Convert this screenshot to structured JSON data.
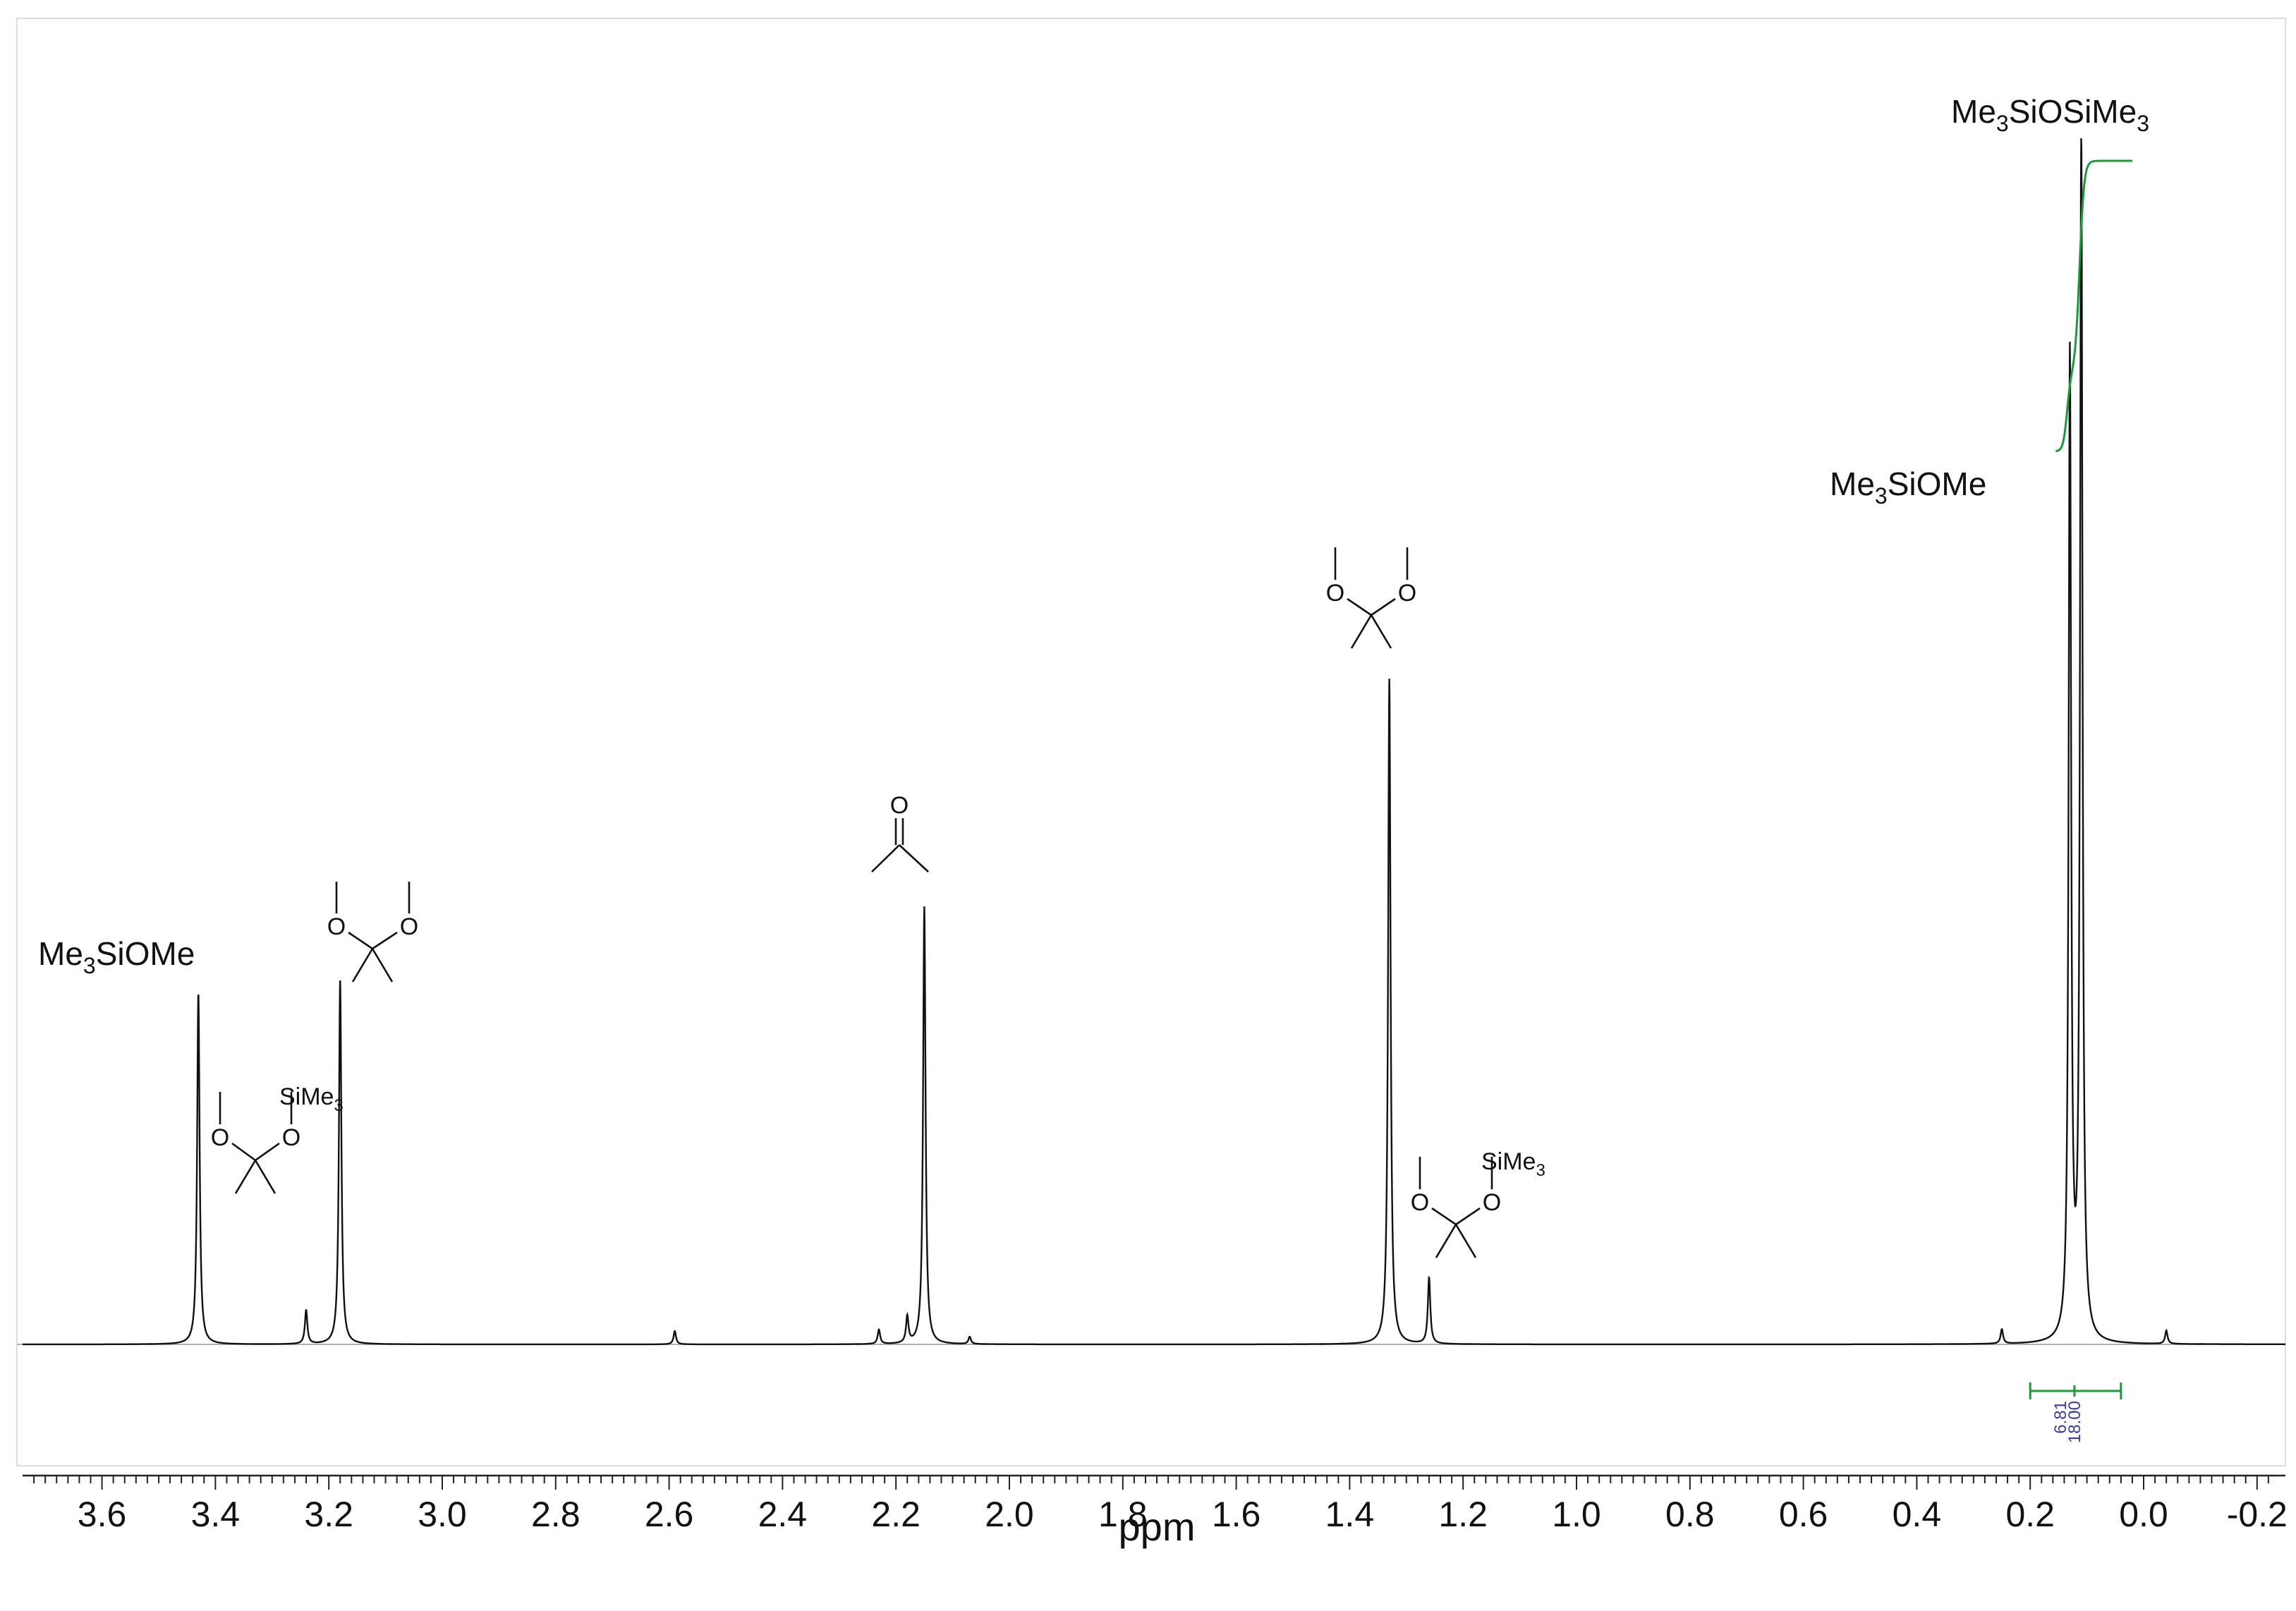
{
  "chart_data": {
    "type": "line",
    "title": "",
    "xlabel": "ppm",
    "ylabel": "",
    "xlim": [
      3.74,
      -0.25
    ],
    "x_reversed": true,
    "x_ticks": [
      "3.6",
      "3.4",
      "3.2",
      "3.0",
      "2.8",
      "2.6",
      "2.4",
      "2.2",
      "2.0",
      "1.8",
      "1.6",
      "1.4",
      "1.2",
      "1.0",
      "0.8",
      "0.6",
      "0.4",
      "0.2",
      "0.0",
      "-0.2"
    ],
    "x_tick_values": [
      3.6,
      3.4,
      3.2,
      3.0,
      2.8,
      2.6,
      2.4,
      2.2,
      2.0,
      1.8,
      1.6,
      1.4,
      1.2,
      1.0,
      0.8,
      0.6,
      0.4,
      0.2,
      0.0,
      -0.2
    ],
    "grid": false,
    "series": [
      {
        "peaks": [
          {
            "ppm": 3.43,
            "height": 0.292
          },
          {
            "ppm": 3.24,
            "height": 0.028
          },
          {
            "ppm": 3.18,
            "height": 0.302
          },
          {
            "ppm": 2.59,
            "height": 0.011
          },
          {
            "ppm": 2.23,
            "height": 0.012
          },
          {
            "ppm": 2.18,
            "height": 0.022
          },
          {
            "ppm": 2.15,
            "height": 0.363
          },
          {
            "ppm": 2.07,
            "height": 0.006
          },
          {
            "ppm": 1.33,
            "height": 0.552
          },
          {
            "ppm": 1.26,
            "height": 0.055
          },
          {
            "ppm": 0.25,
            "height": 0.012
          },
          {
            "ppm": 0.13,
            "height": 0.815
          },
          {
            "ppm": 0.11,
            "height": 1.0
          },
          {
            "ppm": -0.04,
            "height": 0.011
          }
        ]
      }
    ],
    "integrals": [
      {
        "from": 0.2,
        "to": 0.04,
        "labels": [
          "6.81",
          "18.00"
        ]
      }
    ],
    "annotations": [
      {
        "id": "ann-me3siome-left",
        "text": "Me3SiOMe",
        "parts": [
          "Me",
          "3",
          "SiOMe"
        ]
      },
      {
        "id": "ann-mixed-ketal-318",
        "substituent": "SiMe3",
        "parts": [
          "SiMe",
          "3"
        ]
      },
      {
        "id": "ann-dimethoxypropane-318"
      },
      {
        "id": "ann-acetone"
      },
      {
        "id": "ann-dimethoxypropane-133"
      },
      {
        "id": "ann-mixed-ketal-126",
        "substituent": "SiMe3",
        "parts": [
          "SiMe",
          "3"
        ]
      },
      {
        "id": "ann-me3siome-right",
        "text": "Me3SiOMe",
        "parts": [
          "Me",
          "3",
          "SiOMe"
        ]
      },
      {
        "id": "ann-hmdso",
        "text": "Me3SiOSiMe3",
        "parts": [
          "Me",
          "3",
          "SiOSiMe",
          "3"
        ]
      }
    ],
    "atom_labels": {
      "oxygen": "O"
    }
  },
  "colors": {
    "spectrum": "#111111",
    "integral": "#1a9a3a",
    "integral_value": "#3a3aa8",
    "frame": "#dddddd"
  }
}
